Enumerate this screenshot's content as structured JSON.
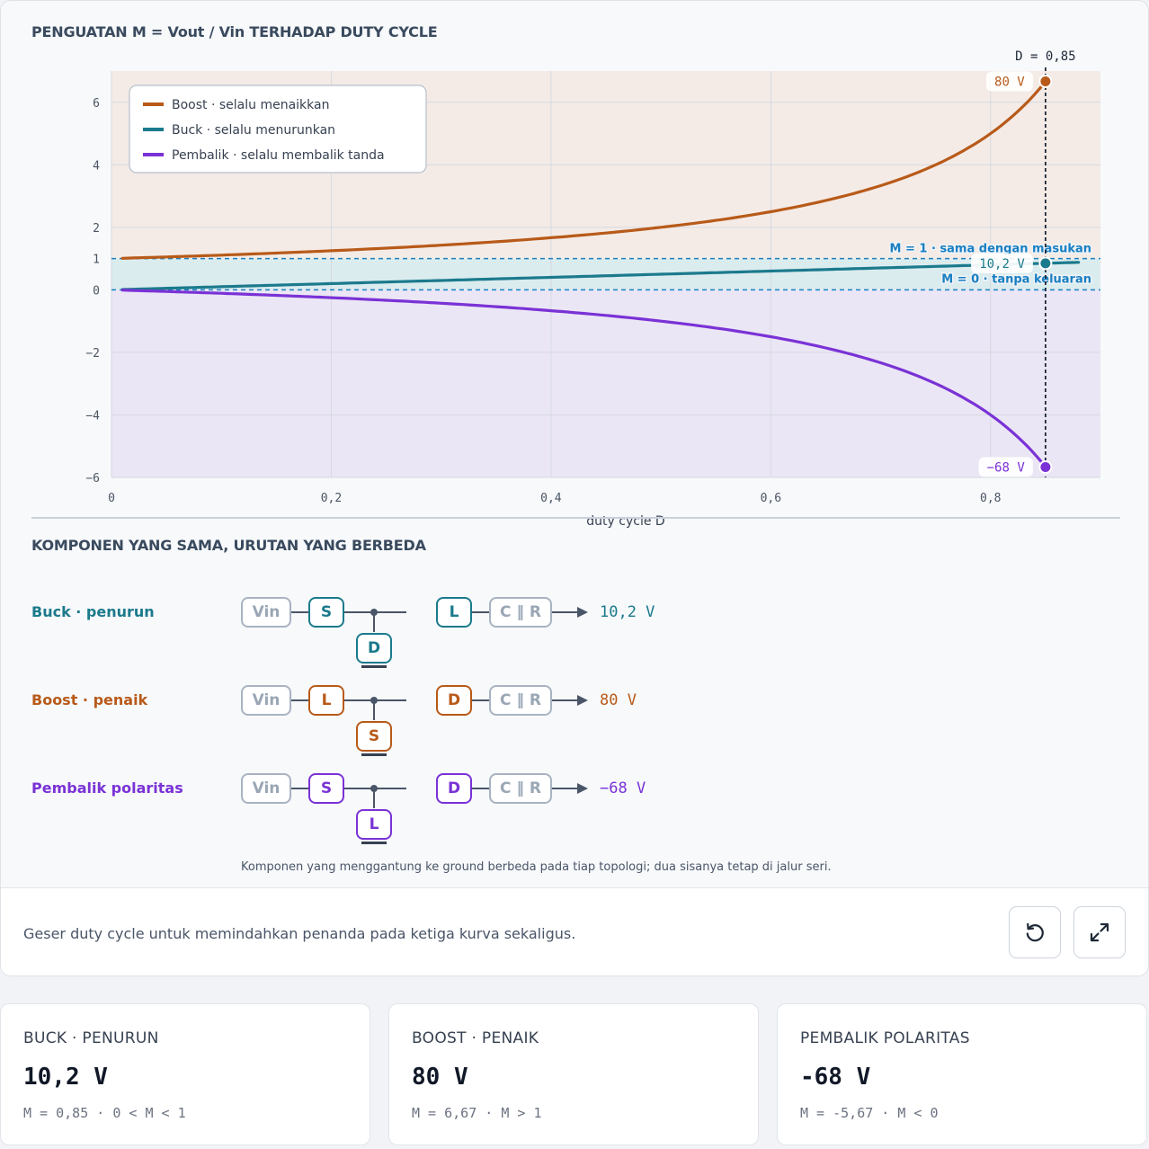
{
  "chart_title": "PENGUATAN M = Vout / Vin TERHADAP DUTY CYCLE",
  "chart_data": {
    "type": "line",
    "xlabel": "duty cycle D",
    "ylabel": "",
    "xlim": [
      0,
      0.9
    ],
    "ylim": [
      -6,
      7
    ],
    "x_ticks": [
      "0",
      "0,2",
      "0,4",
      "0,6",
      "0,8"
    ],
    "x_tick_values": [
      0,
      0.2,
      0.4,
      0.6,
      0.8
    ],
    "y_ticks": [
      "6",
      "4",
      "2",
      "1",
      "0",
      "−2",
      "−4",
      "−6"
    ],
    "y_tick_values": [
      6,
      4,
      2,
      1,
      0,
      -2,
      -4,
      -6
    ],
    "grid": true,
    "legend_position": "top-left",
    "series": [
      {
        "name": "Boost · selalu menaikkan",
        "color": "#b85a19",
        "formula": "1/(1-D)",
        "x": [
          0.01,
          0.1,
          0.2,
          0.3,
          0.4,
          0.5,
          0.6,
          0.7,
          0.8,
          0.85
        ],
        "y": [
          1.01,
          1.11,
          1.25,
          1.43,
          1.67,
          2.0,
          2.5,
          3.33,
          5.0,
          6.67
        ]
      },
      {
        "name": "Buck · selalu menurunkan",
        "color": "#1b7a8c",
        "formula": "D",
        "x": [
          0.01,
          0.2,
          0.4,
          0.6,
          0.8,
          0.88
        ],
        "y": [
          0.01,
          0.2,
          0.4,
          0.6,
          0.8,
          0.88
        ]
      },
      {
        "name": "Pembalik · selalu membalik tanda",
        "color": "#7a32d6",
        "formula": "-D/(1-D)",
        "x": [
          0.01,
          0.1,
          0.2,
          0.3,
          0.4,
          0.5,
          0.6,
          0.7,
          0.8,
          0.85
        ],
        "y": [
          -0.01,
          -0.11,
          -0.25,
          -0.43,
          -0.67,
          -1.0,
          -1.5,
          -2.33,
          -4.0,
          -5.67
        ]
      }
    ],
    "reference_lines": [
      {
        "y": 1,
        "label": "M = 1 · sama dengan masukan"
      },
      {
        "y": 0,
        "label": "M = 0 · tanpa keluaran"
      }
    ],
    "marker": {
      "x": 0.85,
      "label": "D = 0,85",
      "points": [
        {
          "series": "Boost",
          "y": 6.67,
          "label": "80  V"
        },
        {
          "series": "Buck",
          "y": 0.85,
          "label": "10,2  V"
        },
        {
          "series": "Pembalik",
          "y": -5.67,
          "label": "−68  V"
        }
      ]
    }
  },
  "diagram": {
    "title": "KOMPONEN YANG SAMA, URUTAN YANG BERBEDA",
    "rows": [
      {
        "label": "Buck · penurun",
        "color": "#1b7a8c",
        "source": "Vin",
        "series1": "S",
        "shunt": "D",
        "series2": "L",
        "load": "C ‖ R",
        "output": "10,2  V"
      },
      {
        "label": "Boost · penaik",
        "color": "#b85a19",
        "source": "Vin",
        "series1": "L",
        "shunt": "S",
        "series2": "D",
        "load": "C ‖ R",
        "output": "80  V"
      },
      {
        "label": "Pembalik polaritas",
        "color": "#7a32d6",
        "source": "Vin",
        "series1": "S",
        "shunt": "L",
        "series2": "D",
        "load": "C ‖ R",
        "output": "−68  V"
      }
    ],
    "caption": "Komponen yang menggantung ke ground berbeda pada tiap topologi; dua sisanya tetap di jalur seri."
  },
  "controls": {
    "hint": "Geser duty cycle untuk memindahkan penanda pada ketiga kurva sekaligus.",
    "reset_icon": "reset-icon",
    "expand_icon": "expand-icon"
  },
  "cards": [
    {
      "title": "BUCK · PENURUN",
      "value": "10,2  V",
      "sub": "M = 0,85 · 0 < M < 1"
    },
    {
      "title": "BOOST · PENAIK",
      "value": "80  V",
      "sub": "M = 6,67 · M > 1"
    },
    {
      "title": "PEMBALIK POLARITAS",
      "value": "-68  V",
      "sub": "M = -5,67 · M < 0"
    }
  ]
}
